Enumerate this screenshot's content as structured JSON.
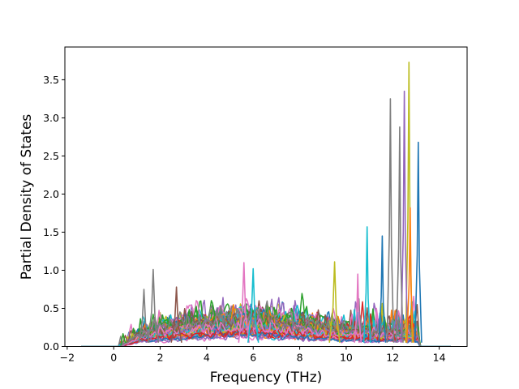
{
  "chart_data": {
    "type": "line",
    "title": "",
    "xlabel": "Frequency (THz)",
    "ylabel": "Partial Density of States",
    "xlim": [
      -2.1,
      15.2
    ],
    "ylim": [
      0.0,
      3.93
    ],
    "xticks": [
      -2,
      0,
      2,
      4,
      6,
      8,
      10,
      12,
      14
    ],
    "yticks": [
      0.0,
      0.5,
      1.0,
      1.5,
      2.0,
      2.5,
      3.0,
      3.5
    ],
    "xtick_labels": [
      "−2",
      "0",
      "2",
      "4",
      "6",
      "8",
      "10",
      "12",
      "14"
    ],
    "ytick_labels": [
      "0.0",
      "0.5",
      "1.0",
      "1.5",
      "2.0",
      "2.5",
      "3.0",
      "3.5"
    ],
    "grid": false,
    "legend": "none",
    "x_range": [
      -1.4,
      14.5
    ],
    "series_count": 48,
    "colors": [
      "#1f77b4",
      "#ff7f0e",
      "#2ca02c",
      "#d62728",
      "#9467bd",
      "#8c564b",
      "#e377c2",
      "#7f7f7f",
      "#bcbd22",
      "#17becf"
    ],
    "notable_peaks": [
      {
        "x": 12.7,
        "y": 3.73,
        "color": "#bcbd22"
      },
      {
        "x": 12.5,
        "y": 3.35,
        "color": "#9467bd"
      },
      {
        "x": 11.9,
        "y": 3.25,
        "color": "#7f7f7f"
      },
      {
        "x": 12.3,
        "y": 2.88,
        "color": "#7f7f7f"
      },
      {
        "x": 13.1,
        "y": 2.68,
        "color": "#1f77b4"
      },
      {
        "x": 12.75,
        "y": 1.82,
        "color": "#ff7f0e"
      },
      {
        "x": 10.9,
        "y": 1.57,
        "color": "#17becf"
      },
      {
        "x": 11.55,
        "y": 1.45,
        "color": "#1f77b4"
      },
      {
        "x": 9.5,
        "y": 1.11,
        "color": "#bcbd22"
      },
      {
        "x": 1.7,
        "y": 1.01,
        "color": "#7f7f7f"
      },
      {
        "x": 5.6,
        "y": 1.1,
        "color": "#e377c2"
      },
      {
        "x": 6.0,
        "y": 1.02,
        "color": "#17becf"
      },
      {
        "x": 10.5,
        "y": 0.95,
        "color": "#e377c2"
      },
      {
        "x": 2.7,
        "y": 0.78,
        "color": "#8c564b"
      },
      {
        "x": 1.3,
        "y": 0.75,
        "color": "#7f7f7f"
      }
    ]
  }
}
